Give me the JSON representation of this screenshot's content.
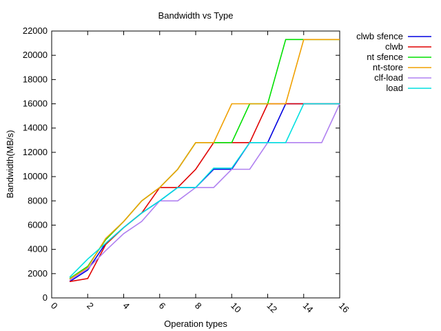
{
  "chart_data": {
    "type": "line",
    "title": "Bandwidth vs Type",
    "xlabel": "Operation types",
    "ylabel": "Bandwidth(MB/s)",
    "xlim": [
      0,
      16
    ],
    "ylim": [
      0,
      22000
    ],
    "xticks": [
      0,
      2,
      4,
      6,
      8,
      10,
      12,
      14,
      16
    ],
    "yticks": [
      0,
      2000,
      4000,
      6000,
      8000,
      10000,
      12000,
      14000,
      16000,
      18000,
      20000,
      22000
    ],
    "grid": false,
    "legend_position": "top-right-outside",
    "x": [
      1,
      2,
      3,
      4,
      5,
      6,
      7,
      8,
      9,
      10,
      11,
      12,
      13,
      14,
      15,
      16
    ],
    "series": [
      {
        "name": "clwb sfence",
        "color": "#0000e0",
        "values": [
          1350,
          2300,
          4500,
          5800,
          7000,
          8000,
          9100,
          9100,
          10600,
          10600,
          12800,
          12800,
          16000,
          16000,
          16000,
          16000
        ]
      },
      {
        "name": "clwb",
        "color": "#e00000",
        "values": [
          1350,
          1600,
          4400,
          5800,
          7000,
          9100,
          9100,
          10600,
          12800,
          12800,
          12800,
          16000,
          16000,
          16000,
          16000,
          16000
        ]
      },
      {
        "name": "nt sfence",
        "color": "#00e000",
        "values": [
          1600,
          2600,
          4800,
          6300,
          8000,
          9100,
          10600,
          12800,
          12800,
          12800,
          16000,
          16000,
          21300,
          21300,
          21300,
          21300
        ]
      },
      {
        "name": "nt-store",
        "color": "#f0a000",
        "values": [
          1550,
          2500,
          4900,
          6300,
          8000,
          9100,
          10600,
          12800,
          12800,
          16000,
          16000,
          16000,
          16000,
          21300,
          21300,
          21300
        ]
      },
      {
        "name": "clf-load",
        "color": "#b080f0",
        "values": [
          1450,
          2400,
          3900,
          5300,
          6300,
          8000,
          8000,
          9100,
          9100,
          10600,
          10600,
          12800,
          12800,
          12800,
          12800,
          16000
        ]
      },
      {
        "name": "load",
        "color": "#00e0e0",
        "values": [
          1700,
          3200,
          4500,
          5800,
          7000,
          8000,
          9100,
          9100,
          10700,
          10700,
          12800,
          12800,
          12800,
          16000,
          16000,
          16000
        ]
      }
    ]
  }
}
